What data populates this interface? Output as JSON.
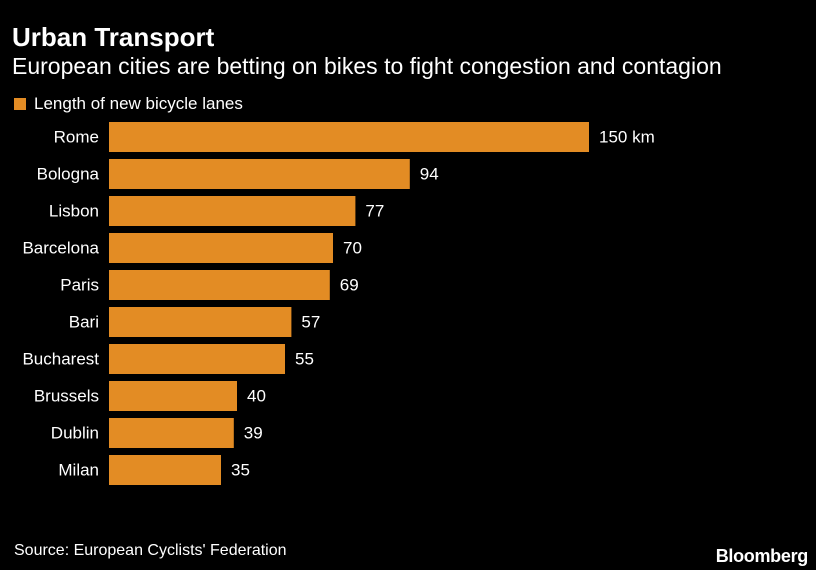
{
  "header": {
    "title": "Urban Transport",
    "subtitle": "European cities are betting on bikes to fight congestion and contagion"
  },
  "legend": {
    "label": "Length of new bicycle lanes"
  },
  "footer": {
    "source": "Source: European Cyclists' Federation",
    "logo": "Bloomberg"
  },
  "colors": {
    "bar": "#e38c24",
    "background": "#000000",
    "text": "#ffffff"
  },
  "chart_data": {
    "type": "bar",
    "orientation": "horizontal",
    "categories": [
      "Rome",
      "Bologna",
      "Lisbon",
      "Barcelona",
      "Paris",
      "Bari",
      "Bucharest",
      "Brussels",
      "Dublin",
      "Milan"
    ],
    "series": [
      {
        "name": "Length of new bicycle lanes",
        "values": [
          150,
          94,
          77,
          70,
          69,
          57,
          55,
          40,
          39,
          35
        ]
      }
    ],
    "data_labels": [
      "150 km",
      "94",
      "77",
      "70",
      "69",
      "57",
      "55",
      "40",
      "39",
      "35"
    ],
    "unit": "km",
    "xlim": [
      0,
      150
    ],
    "grid": false,
    "legend_position": "top-left"
  }
}
